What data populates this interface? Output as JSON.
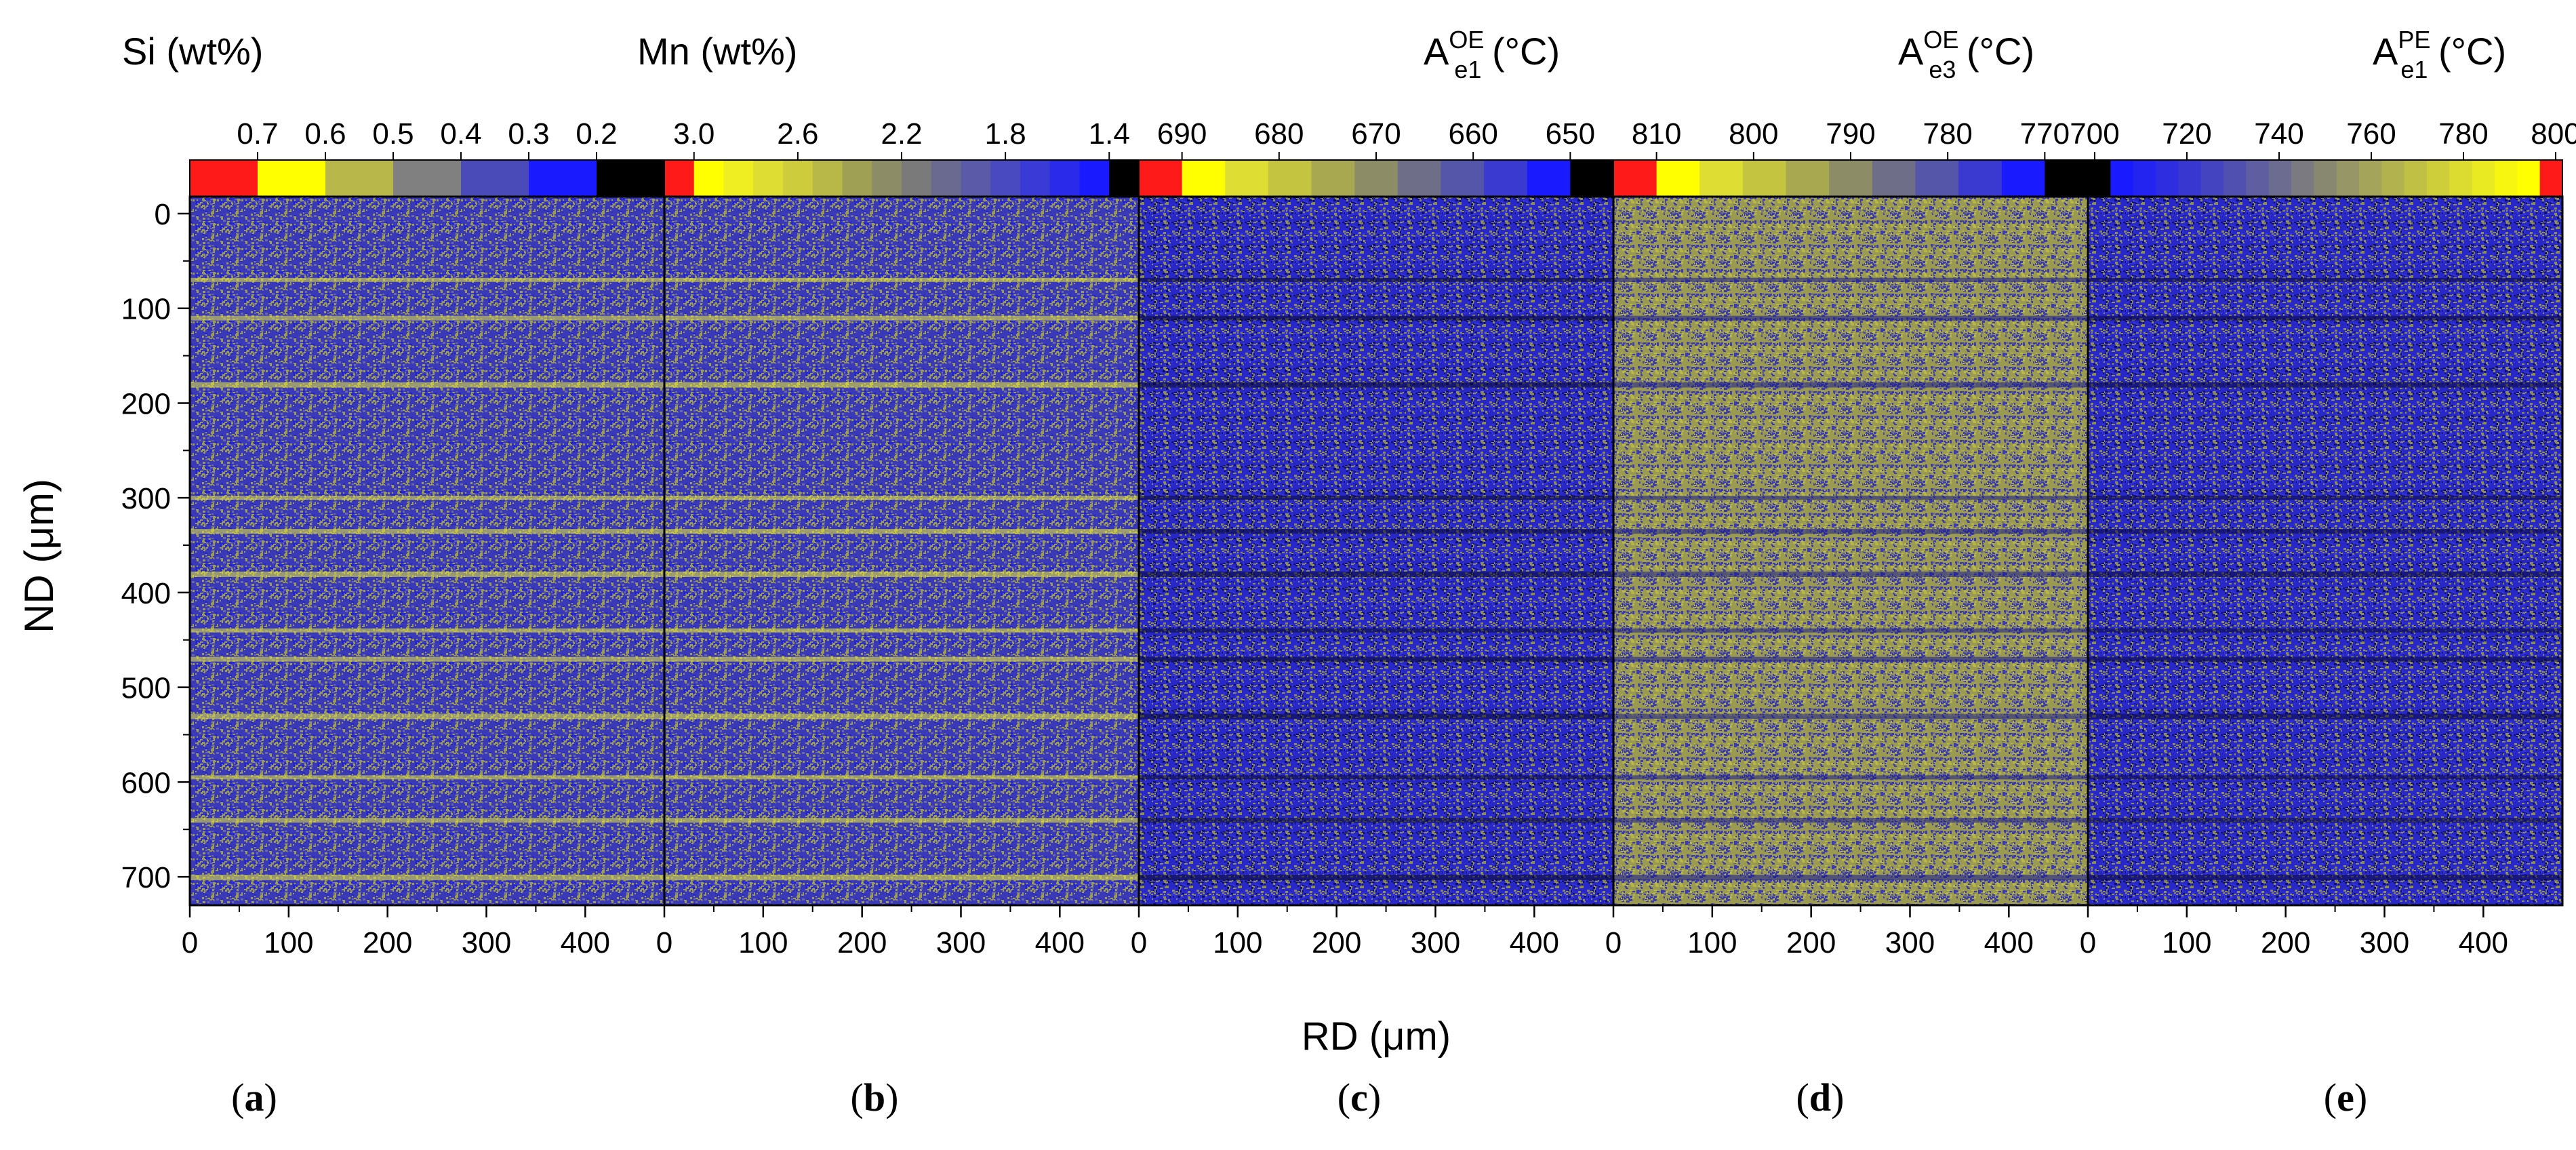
{
  "chart_data": {
    "type": "heatmap",
    "ylabel": "ND (μm)",
    "xlabel": "RD (μm)",
    "ylim": [
      0,
      730
    ],
    "xlim": [
      0,
      480
    ],
    "y_ticks": [
      "0",
      "100",
      "200",
      "300",
      "400",
      "500",
      "600",
      "700"
    ],
    "x_ticks": [
      "0",
      "100",
      "200",
      "300",
      "400"
    ],
    "band_positions_um": [
      70,
      110,
      180,
      300,
      335,
      380,
      440,
      470,
      530,
      595,
      640,
      700
    ],
    "panels": [
      {
        "id": "a",
        "caption": "a",
        "colorbar_title_main": "Si (wt%)",
        "colorbar_title_sub": "",
        "colorbar_title_sup": "",
        "colorbar_title_unit": "",
        "colorbar_ticks": [
          "0.7",
          "0.6",
          "0.5",
          "0.4",
          "0.3",
          "0.2"
        ],
        "colorbar_colors": [
          "#ff1a1a",
          "#ffff00",
          "#b8b84a",
          "#808080",
          "#4a4ab8",
          "#1a1aff",
          "#000000"
        ]
      },
      {
        "id": "b",
        "caption": "b",
        "colorbar_title_main": "Mn (wt%)",
        "colorbar_title_sub": "",
        "colorbar_title_sup": "",
        "colorbar_title_unit": "",
        "colorbar_ticks": [
          "3.0",
          "2.6",
          "2.2",
          "1.8",
          "1.4"
        ],
        "colorbar_colors": [
          "#ff1a1a",
          "#ffff00",
          "#eeee22",
          "#dddd33",
          "#cccc3d",
          "#b8b848",
          "#a0a055",
          "#8c8c66",
          "#7a7a7a",
          "#6a6a90",
          "#5a5aa8",
          "#4a4ac0",
          "#3a3ad6",
          "#2a2aea",
          "#1a1aff",
          "#000000"
        ]
      },
      {
        "id": "c",
        "caption": "c",
        "colorbar_title_main": "A",
        "colorbar_title_sub": "e1",
        "colorbar_title_sup": "OE",
        "colorbar_title_unit": "(°C)",
        "colorbar_ticks": [
          "690",
          "680",
          "670",
          "660",
          "650"
        ],
        "colorbar_colors": [
          "#ff1a1a",
          "#ffff00",
          "#dddd33",
          "#c4c440",
          "#a8a850",
          "#8c8c66",
          "#6e6e88",
          "#5555aa",
          "#3a3ad0",
          "#1a1aff",
          "#000000"
        ]
      },
      {
        "id": "d",
        "caption": "d",
        "colorbar_title_main": "A",
        "colorbar_title_sub": "e3",
        "colorbar_title_sup": "OE",
        "colorbar_title_unit": "(°C)",
        "colorbar_ticks": [
          "810",
          "800",
          "790",
          "780",
          "770"
        ],
        "colorbar_colors": [
          "#ff1a1a",
          "#ffff00",
          "#dddd33",
          "#c4c440",
          "#a8a850",
          "#8c8c66",
          "#6e6e88",
          "#5555aa",
          "#3a3ad0",
          "#1a1aff",
          "#000000"
        ]
      },
      {
        "id": "e",
        "caption": "e",
        "colorbar_title_main": "A",
        "colorbar_title_sub": "e1",
        "colorbar_title_sup": "PE",
        "colorbar_title_unit": "(°C)",
        "colorbar_ticks": [
          "700",
          "720",
          "740",
          "760",
          "780",
          "800"
        ],
        "colorbar_colors": [
          "#000000",
          "#1a1aff",
          "#2424f0",
          "#2e2ee0",
          "#3838d0",
          "#4444c0",
          "#5050b0",
          "#5e5ea0",
          "#6c6c90",
          "#7a7a80",
          "#888870",
          "#969666",
          "#a4a45a",
          "#b2b24e",
          "#c0c044",
          "#cece3a",
          "#dcdc30",
          "#eaea22",
          "#f6f610",
          "#ffff00",
          "#ff1a1a"
        ]
      }
    ]
  }
}
